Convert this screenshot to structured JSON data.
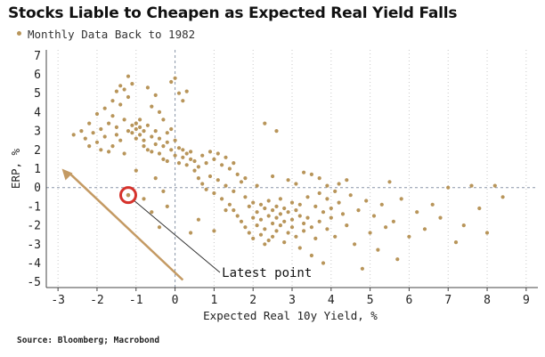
{
  "chart_data": {
    "type": "scatter",
    "title": "Stocks Liable to Cheapen as Expected Real Yield Falls",
    "legend": [
      {
        "label": "Monthly Data Back to 1982",
        "color": "#b8955a"
      }
    ],
    "legend_placement": "top-left",
    "xlabel": "Expected Real 10y Yield, %",
    "ylabel": "ERP, %",
    "xlim": [
      -3.3,
      9.3
    ],
    "ylim": [
      -5.3,
      7.3
    ],
    "xticks": [
      -3,
      -2,
      -1,
      0,
      1,
      2,
      3,
      4,
      5,
      6,
      7,
      8,
      9
    ],
    "yticks": [
      7,
      6,
      5,
      4,
      3,
      2,
      1,
      0,
      -1,
      -2,
      -3,
      -4,
      -5
    ],
    "grid": "vertical dotted gridlines; dashed reference lines at x=0 and y=0",
    "point_color": "#b8955a",
    "series": [
      {
        "name": "Monthly Data Back to 1982",
        "points": [
          [
            -2.6,
            2.8
          ],
          [
            -2.4,
            3.0
          ],
          [
            -2.3,
            2.6
          ],
          [
            -2.2,
            2.2
          ],
          [
            -2.2,
            3.4
          ],
          [
            -2.1,
            2.9
          ],
          [
            -2.0,
            2.4
          ],
          [
            -2.0,
            3.9
          ],
          [
            -1.9,
            3.1
          ],
          [
            -1.9,
            2.0
          ],
          [
            -1.8,
            4.2
          ],
          [
            -1.8,
            2.7
          ],
          [
            -1.7,
            3.4
          ],
          [
            -1.7,
            1.9
          ],
          [
            -1.6,
            4.6
          ],
          [
            -1.6,
            3.8
          ],
          [
            -1.6,
            2.2
          ],
          [
            -1.5,
            5.1
          ],
          [
            -1.5,
            3.2
          ],
          [
            -1.5,
            2.8
          ],
          [
            -1.4,
            5.4
          ],
          [
            -1.4,
            4.4
          ],
          [
            -1.4,
            2.5
          ],
          [
            -1.3,
            5.2
          ],
          [
            -1.3,
            3.6
          ],
          [
            -1.3,
            1.8
          ],
          [
            -1.2,
            5.9
          ],
          [
            -1.2,
            4.8
          ],
          [
            -1.2,
            3.0
          ],
          [
            -1.1,
            5.5
          ],
          [
            -1.1,
            3.3
          ],
          [
            -1.1,
            2.9
          ],
          [
            -1.0,
            3.1
          ],
          [
            -1.0,
            3.4
          ],
          [
            -1.0,
            2.6
          ],
          [
            -0.9,
            3.2
          ],
          [
            -0.9,
            2.8
          ],
          [
            -0.9,
            3.6
          ],
          [
            -0.8,
            3.0
          ],
          [
            -0.8,
            2.5
          ],
          [
            -0.8,
            2.2
          ],
          [
            -0.7,
            5.3
          ],
          [
            -0.7,
            3.3
          ],
          [
            -0.7,
            2.0
          ],
          [
            -0.6,
            4.3
          ],
          [
            -0.6,
            2.7
          ],
          [
            -0.6,
            1.9
          ],
          [
            -0.5,
            4.9
          ],
          [
            -0.5,
            3.0
          ],
          [
            -0.5,
            2.3
          ],
          [
            -0.4,
            4.0
          ],
          [
            -0.4,
            2.6
          ],
          [
            -0.4,
            1.8
          ],
          [
            -0.3,
            3.6
          ],
          [
            -0.3,
            2.2
          ],
          [
            -0.3,
            1.5
          ],
          [
            -0.2,
            2.9
          ],
          [
            -0.2,
            2.4
          ],
          [
            -0.2,
            1.4
          ],
          [
            -0.1,
            5.6
          ],
          [
            -0.1,
            3.1
          ],
          [
            -0.1,
            2.0
          ],
          [
            0.0,
            5.8
          ],
          [
            0.0,
            2.5
          ],
          [
            0.0,
            1.7
          ],
          [
            0.1,
            5.0
          ],
          [
            0.1,
            2.1
          ],
          [
            0.1,
            1.3
          ],
          [
            0.2,
            4.6
          ],
          [
            0.2,
            2.0
          ],
          [
            0.2,
            1.6
          ],
          [
            0.3,
            5.1
          ],
          [
            0.3,
            1.8
          ],
          [
            0.3,
            1.2
          ],
          [
            0.4,
            1.5
          ],
          [
            0.4,
            1.9
          ],
          [
            0.5,
            0.9
          ],
          [
            0.5,
            1.4
          ],
          [
            0.6,
            1.1
          ],
          [
            0.6,
            0.5
          ],
          [
            0.7,
            1.7
          ],
          [
            0.7,
            0.2
          ],
          [
            0.8,
            1.3
          ],
          [
            0.8,
            -0.1
          ],
          [
            0.9,
            1.9
          ],
          [
            0.9,
            0.6
          ],
          [
            1.0,
            1.5
          ],
          [
            1.0,
            -0.3
          ],
          [
            1.1,
            1.8
          ],
          [
            1.1,
            0.4
          ],
          [
            1.2,
            1.2
          ],
          [
            1.2,
            -0.6
          ],
          [
            1.3,
            1.6
          ],
          [
            1.3,
            0.1
          ],
          [
            1.4,
            1.0
          ],
          [
            1.4,
            -0.9
          ],
          [
            1.5,
            1.3
          ],
          [
            1.5,
            -1.2
          ],
          [
            1.6,
            0.7
          ],
          [
            1.6,
            -1.5
          ],
          [
            1.7,
            0.3
          ],
          [
            1.7,
            -1.8
          ],
          [
            1.8,
            -0.5
          ],
          [
            1.8,
            -2.1
          ],
          [
            1.9,
            -1.0
          ],
          [
            1.9,
            -2.4
          ],
          [
            2.0,
            -0.8
          ],
          [
            2.0,
            -1.6
          ],
          [
            2.0,
            -2.7
          ],
          [
            2.1,
            -1.3
          ],
          [
            2.1,
            -2.0
          ],
          [
            2.2,
            -0.9
          ],
          [
            2.2,
            -1.7
          ],
          [
            2.2,
            -2.5
          ],
          [
            2.3,
            -1.1
          ],
          [
            2.3,
            -2.2
          ],
          [
            2.3,
            -3.0
          ],
          [
            2.4,
            -0.7
          ],
          [
            2.4,
            -1.5
          ],
          [
            2.4,
            -2.8
          ],
          [
            2.5,
            -1.2
          ],
          [
            2.5,
            -1.9
          ],
          [
            2.5,
            -2.6
          ],
          [
            2.6,
            -1.0
          ],
          [
            2.6,
            -1.6
          ],
          [
            2.6,
            -2.3
          ],
          [
            2.7,
            -0.6
          ],
          [
            2.7,
            -1.4
          ],
          [
            2.7,
            -2.0
          ],
          [
            2.8,
            -1.1
          ],
          [
            2.8,
            -1.8
          ],
          [
            2.8,
            -2.9
          ],
          [
            2.9,
            -1.3
          ],
          [
            2.9,
            -2.4
          ],
          [
            3.0,
            -0.8
          ],
          [
            3.0,
            -1.7
          ],
          [
            3.0,
            -2.1
          ],
          [
            3.1,
            -1.2
          ],
          [
            3.1,
            -2.6
          ],
          [
            3.2,
            -0.9
          ],
          [
            3.2,
            -1.5
          ],
          [
            3.2,
            -3.2
          ],
          [
            3.3,
            -1.9
          ],
          [
            3.3,
            -2.3
          ],
          [
            3.4,
            -0.5
          ],
          [
            3.4,
            -1.6
          ],
          [
            3.5,
            -2.1
          ],
          [
            3.5,
            -3.6
          ],
          [
            3.6,
            -1.0
          ],
          [
            3.6,
            -2.7
          ],
          [
            3.7,
            -0.3
          ],
          [
            3.7,
            -1.8
          ],
          [
            3.8,
            -1.3
          ],
          [
            3.8,
            -4.0
          ],
          [
            3.9,
            -0.6
          ],
          [
            3.9,
            -2.2
          ],
          [
            4.0,
            -1.1
          ],
          [
            4.0,
            -1.6
          ],
          [
            4.1,
            -0.2
          ],
          [
            4.1,
            -2.6
          ],
          [
            4.2,
            -0.8
          ],
          [
            4.3,
            -1.4
          ],
          [
            4.4,
            -2.0
          ],
          [
            4.5,
            -0.4
          ],
          [
            4.6,
            -3.0
          ],
          [
            4.7,
            -1.2
          ],
          [
            4.8,
            -4.3
          ],
          [
            4.9,
            -0.7
          ],
          [
            5.0,
            -2.4
          ],
          [
            5.1,
            -1.5
          ],
          [
            5.2,
            -3.3
          ],
          [
            5.3,
            -0.9
          ],
          [
            5.4,
            -2.1
          ],
          [
            5.5,
            0.3
          ],
          [
            5.6,
            -1.8
          ],
          [
            5.7,
            -3.8
          ],
          [
            5.8,
            -0.6
          ],
          [
            6.0,
            -2.6
          ],
          [
            6.2,
            -1.3
          ],
          [
            6.4,
            -2.2
          ],
          [
            6.6,
            -0.9
          ],
          [
            6.8,
            -1.6
          ],
          [
            7.0,
            0.0
          ],
          [
            7.2,
            -2.9
          ],
          [
            7.4,
            -2.0
          ],
          [
            7.6,
            0.1
          ],
          [
            7.8,
            -1.1
          ],
          [
            8.0,
            -2.4
          ],
          [
            8.2,
            0.1
          ],
          [
            8.4,
            -0.5
          ],
          [
            -1.0,
            0.9
          ],
          [
            -0.8,
            -0.6
          ],
          [
            -0.6,
            -1.3
          ],
          [
            -0.5,
            0.5
          ],
          [
            -0.4,
            -2.1
          ],
          [
            -0.3,
            -0.2
          ],
          [
            -0.2,
            -1.0
          ],
          [
            0.4,
            -2.4
          ],
          [
            0.6,
            -1.7
          ],
          [
            1.0,
            -2.3
          ],
          [
            1.3,
            -1.2
          ],
          [
            1.5,
            -0.2
          ],
          [
            1.8,
            0.5
          ],
          [
            2.1,
            0.1
          ],
          [
            2.3,
            3.4
          ],
          [
            2.5,
            0.6
          ],
          [
            2.6,
            3.0
          ],
          [
            2.9,
            0.4
          ],
          [
            3.1,
            0.2
          ],
          [
            3.3,
            0.8
          ],
          [
            3.5,
            0.7
          ],
          [
            3.7,
            0.5
          ],
          [
            3.9,
            0.1
          ],
          [
            4.2,
            0.2
          ],
          [
            4.4,
            0.4
          ]
        ]
      }
    ],
    "latest_point": {
      "x": -1.2,
      "y": -0.4
    },
    "annotations": [
      {
        "text": "Latest point",
        "target": "latest_point"
      }
    ],
    "source": "Source: Bloomberg; Macrobond"
  }
}
